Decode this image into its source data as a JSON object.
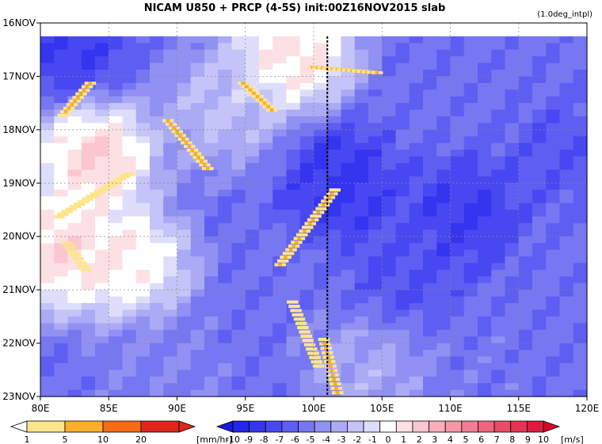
{
  "chart_data": {
    "type": "heatmap",
    "title": "NICAM   U850 + PRCP (4-5S) init:00Z16NOV2015 slab",
    "note": "(1.0deg_intpl)",
    "x_ticks": [
      "80E",
      "85E",
      "90E",
      "95E",
      "100E",
      "105E",
      "110E",
      "115E",
      "120E"
    ],
    "x_range": [
      80,
      120
    ],
    "y_ticks": [
      "16NOV",
      "17NOV",
      "18NOV",
      "19NOV",
      "20NOV",
      "21NOV",
      "22NOV",
      "23NOV"
    ],
    "y_range_days": [
      16,
      23
    ],
    "data_start_day": 16.25,
    "grid": true,
    "reference_line_lon": 101,
    "u850_colorbar": {
      "labels": [
        "-10",
        "-9",
        "-8",
        "-7",
        "-6",
        "-5",
        "-4",
        "-3",
        "-2",
        "-1",
        "0",
        "1",
        "2",
        "3",
        "4",
        "5",
        "6",
        "7",
        "8",
        "9",
        "10"
      ],
      "unit": "[m/s]",
      "colors": [
        "#1a1adc",
        "#2626e6",
        "#3535ef",
        "#4848f2",
        "#5e5ef2",
        "#7777f2",
        "#9191f3",
        "#aaaaf5",
        "#c4c4f8",
        "#dedefc",
        "#ffffff",
        "#fde0e4",
        "#fbc6cf",
        "#f9aeba",
        "#f696a6",
        "#f27d91",
        "#ee657d",
        "#e94c67",
        "#e33452",
        "#dc1c3c",
        "#d10a28"
      ]
    },
    "prcp_colorbar": {
      "labels": [
        "1",
        "5",
        "10",
        "20"
      ],
      "unit": "[mm/hr]",
      "colors": [
        "#ffffff",
        "#fde58c",
        "#fbae2a",
        "#f56b16",
        "#e0261a"
      ]
    },
    "u850_features": [
      {
        "lon": 84,
        "day": 18.5,
        "u": 3.2
      },
      {
        "lon": 81.5,
        "day": 20.3,
        "u": 2.8
      },
      {
        "lon": 86.5,
        "day": 20.5,
        "u": 1.8
      },
      {
        "lon": 98.5,
        "day": 16.6,
        "u": 2.5
      },
      {
        "lon": 82,
        "day": 16.5,
        "u": -8
      },
      {
        "lon": 93.5,
        "day": 17.6,
        "u": -1.5
      },
      {
        "lon": 102,
        "day": 19,
        "u": -8.5
      },
      {
        "lon": 111,
        "day": 19.6,
        "u": -8
      },
      {
        "lon": 107,
        "day": 20.6,
        "u": -7
      },
      {
        "lon": 118,
        "day": 18.5,
        "u": -6.5
      },
      {
        "lon": 104,
        "day": 22.6,
        "u": -2.5
      },
      {
        "lon": 89,
        "day": 22.5,
        "u": -4.5
      },
      {
        "lon": 112,
        "day": 22.3,
        "u": -5
      }
    ],
    "prcp_features": [
      {
        "type": "line",
        "from": [
          81.5,
          17.7
        ],
        "to": [
          83.5,
          17.1
        ],
        "rate": 7
      },
      {
        "type": "line",
        "from": [
          89.2,
          17.8
        ],
        "to": [
          92.1,
          18.7
        ],
        "rate": 8
      },
      {
        "type": "line",
        "from": [
          94.7,
          17.1
        ],
        "to": [
          96.8,
          17.6
        ],
        "rate": 9
      },
      {
        "type": "line",
        "from": [
          99.8,
          16.8
        ],
        "to": [
          104.5,
          16.9
        ],
        "rate": 9
      },
      {
        "type": "line",
        "from": [
          101.4,
          19.1
        ],
        "to": [
          97.4,
          20.5
        ],
        "rate": 6
      },
      {
        "type": "line",
        "from": [
          98.3,
          21.2
        ],
        "to": [
          100.2,
          22.4
        ],
        "rate": 5
      },
      {
        "type": "line",
        "from": [
          81.2,
          19.6
        ],
        "to": [
          86.3,
          18.8
        ],
        "rate": 5
      },
      {
        "type": "line",
        "from": [
          81.8,
          20.1
        ],
        "to": [
          83.2,
          20.6
        ],
        "rate": 5
      },
      {
        "type": "line",
        "from": [
          100.6,
          21.9
        ],
        "to": [
          101.6,
          22.9
        ],
        "rate": 7
      }
    ]
  }
}
